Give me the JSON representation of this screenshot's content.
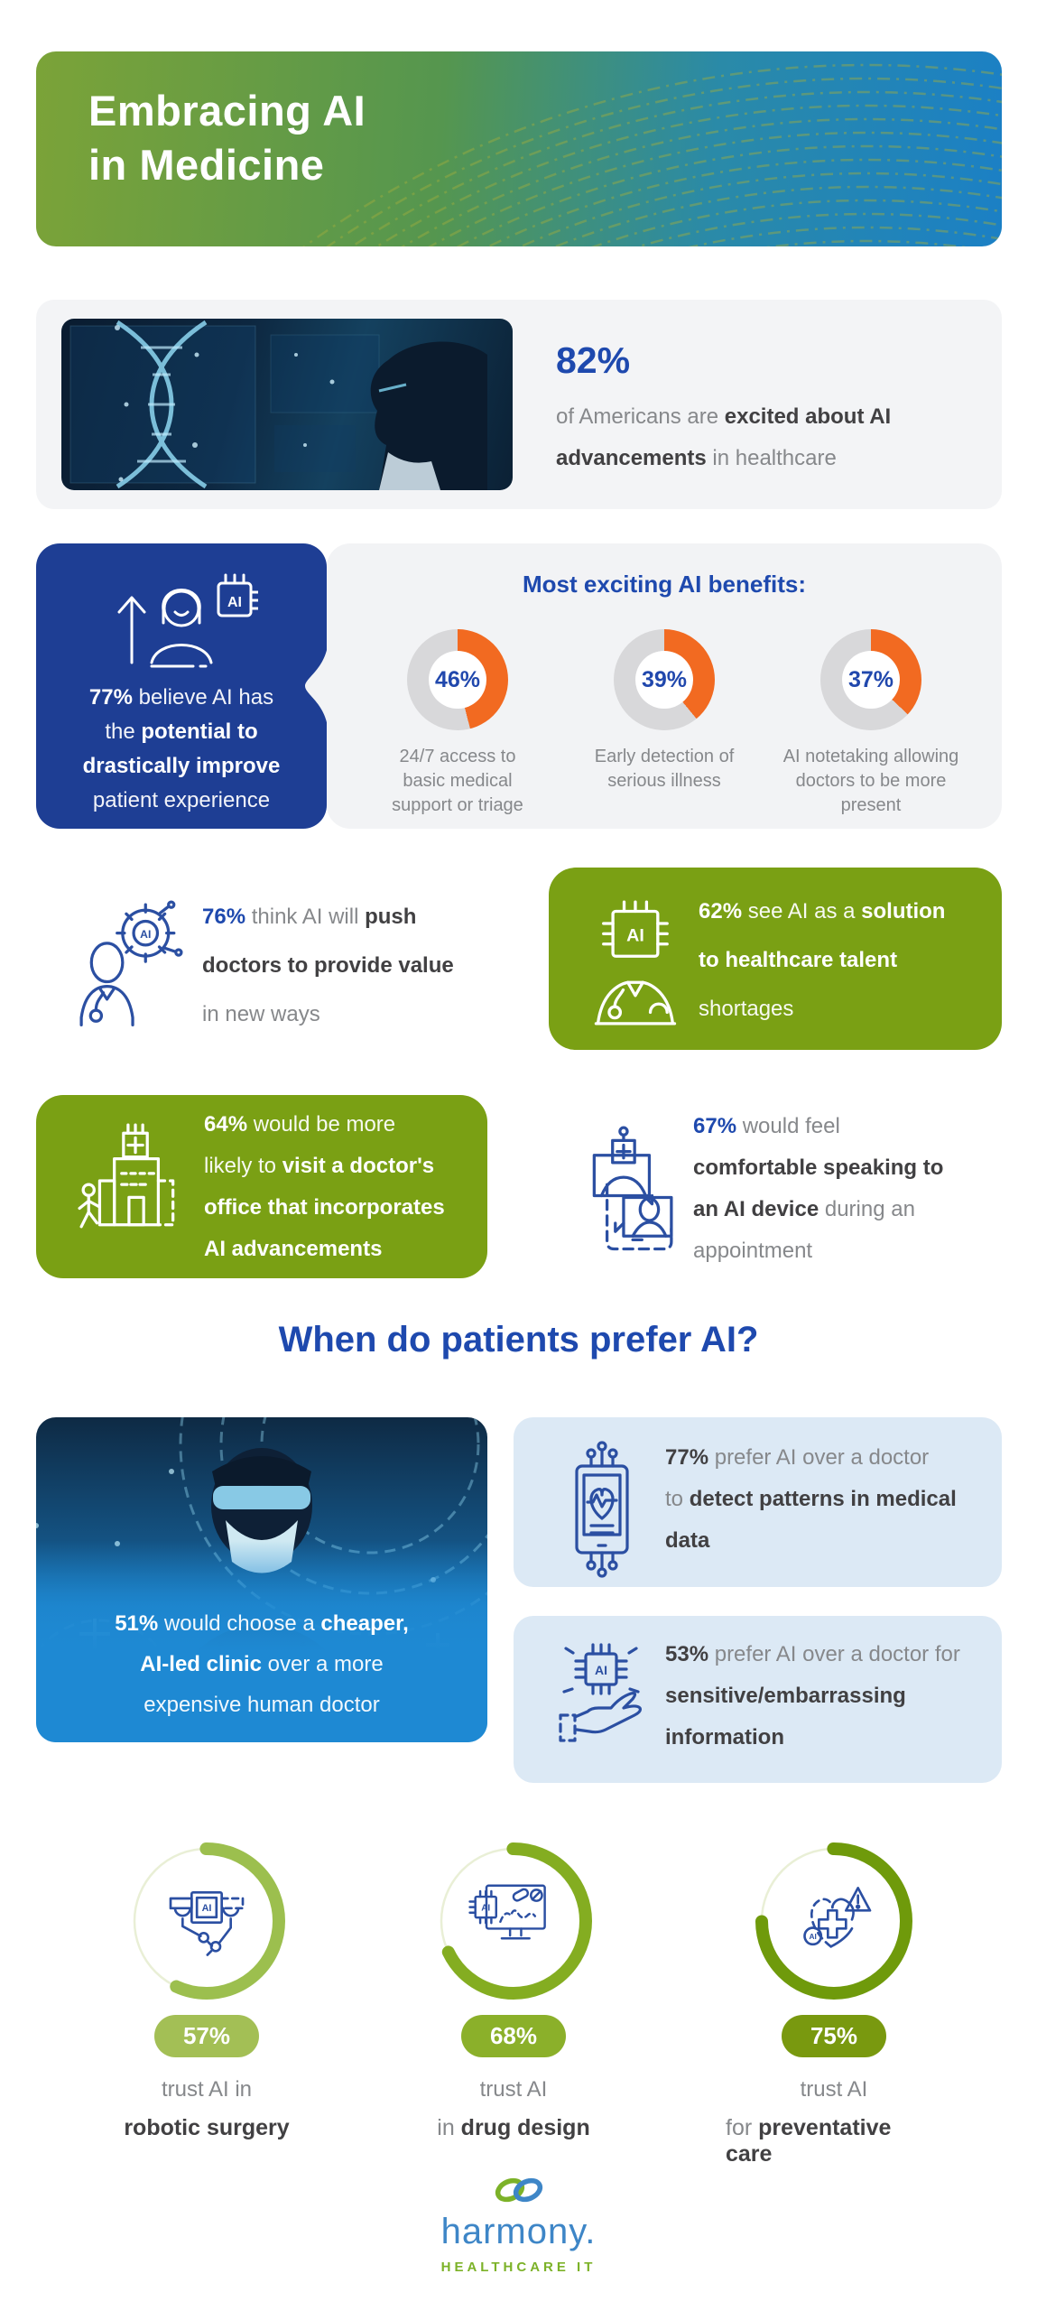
{
  "header": {
    "title_line1": "Embracing AI",
    "title_line2": "in Medicine"
  },
  "hero": {
    "stat": "82%",
    "segments": [
      {
        "t": "of Americans are ",
        "s": "n"
      },
      {
        "t": "excited about AI",
        "s": "b"
      },
      {
        "br": true
      },
      {
        "t": "advancements",
        "s": "b"
      },
      {
        "t": " in healthcare",
        "s": "n"
      }
    ]
  },
  "benefits": {
    "heading": "Most exciting AI benefits:",
    "left": {
      "icon": "growth-person-ai-icon",
      "segments": [
        {
          "t": "77%",
          "s": "wb"
        },
        {
          "t": " believe AI has",
          "s": "w"
        },
        {
          "br": true
        },
        {
          "t": "the ",
          "s": "w"
        },
        {
          "t": "potential to",
          "s": "wb"
        },
        {
          "br": true
        },
        {
          "t": "drastically improve",
          "s": "wb"
        },
        {
          "br": true
        },
        {
          "t": "patient experience",
          "s": "w"
        }
      ]
    },
    "donuts": [
      {
        "pct": "46%",
        "value": 46,
        "color": "#f26a21",
        "track": "#d8d8da",
        "label": "24/7 access to basic medical support or triage"
      },
      {
        "pct": "39%",
        "value": 39,
        "color": "#f26a21",
        "track": "#d8d8da",
        "label": "Early detection of serious illness"
      },
      {
        "pct": "37%",
        "value": 37,
        "color": "#f26a21",
        "track": "#d8d8da",
        "label": "AI notetaking allowing doctors to be more present"
      }
    ]
  },
  "stats": [
    {
      "icon": "doctor-gear-ai-icon",
      "segments": [
        {
          "t": "76%",
          "s": "nb"
        },
        {
          "t": " think AI will ",
          "s": "n"
        },
        {
          "t": "push",
          "s": "b"
        },
        {
          "br": true
        },
        {
          "t": "doctors to provide value",
          "s": "b"
        },
        {
          "br": true
        },
        {
          "t": "in new ways",
          "s": "n"
        }
      ]
    },
    {
      "icon": "ai-chip-person-icon",
      "segments": [
        {
          "t": "62%",
          "s": "wb"
        },
        {
          "t": " see AI as a ",
          "s": "w"
        },
        {
          "t": "solution",
          "s": "wb"
        },
        {
          "br": true
        },
        {
          "t": "to healthcare talent",
          "s": "wb"
        },
        {
          "br": true
        },
        {
          "t": "shortages",
          "s": "w"
        }
      ]
    },
    {
      "icon": "hospital-walk-icon",
      "segments": [
        {
          "t": "64%",
          "s": "wb"
        },
        {
          "t": " would be more",
          "s": "w"
        },
        {
          "br": true
        },
        {
          "t": "likely to ",
          "s": "w"
        },
        {
          "t": "visit a doctor's",
          "s": "wb"
        },
        {
          "br": true
        },
        {
          "t": "office that incorporates",
          "s": "wb"
        },
        {
          "br": true
        },
        {
          "t": "AI advancements",
          "s": "wb"
        }
      ]
    },
    {
      "icon": "video-visit-icon",
      "segments": [
        {
          "t": "67%",
          "s": "nb"
        },
        {
          "t": " would feel",
          "s": "n"
        },
        {
          "br": true
        },
        {
          "t": "comfortable speaking to",
          "s": "b"
        },
        {
          "br": true
        },
        {
          "t": "an AI device",
          "s": "b"
        },
        {
          "t": " during an",
          "s": "n"
        },
        {
          "br": true
        },
        {
          "t": "appointment",
          "s": "n"
        }
      ]
    }
  ],
  "prefer": {
    "heading": "When do patients prefer AI?",
    "photo_caption_segments": [
      {
        "t": "51%",
        "s": "wb"
      },
      {
        "t": " would choose a ",
        "s": "w"
      },
      {
        "t": "cheaper,",
        "s": "wb"
      },
      {
        "br": true
      },
      {
        "t": "AI-led clinic",
        "s": "wb"
      },
      {
        "t": " over a more",
        "s": "w"
      },
      {
        "br": true
      },
      {
        "t": "expensive human doctor",
        "s": "w"
      }
    ],
    "cards": [
      {
        "icon": "tablet-heart-monitor-icon",
        "segments": [
          {
            "t": "77%",
            "s": "b"
          },
          {
            "t": " prefer AI over a doctor",
            "s": "n"
          },
          {
            "br": true
          },
          {
            "t": "to ",
            "s": "n"
          },
          {
            "t": "detect patterns in medical",
            "s": "b"
          },
          {
            "br": true
          },
          {
            "t": "data",
            "s": "b"
          }
        ]
      },
      {
        "icon": "ai-chip-hand-icon",
        "segments": [
          {
            "t": "53%",
            "s": "b"
          },
          {
            "t": " prefer AI over a doctor for",
            "s": "n"
          },
          {
            "br": true
          },
          {
            "t": "sensitive/embarrassing",
            "s": "b"
          },
          {
            "br": true
          },
          {
            "t": "information",
            "s": "b"
          }
        ]
      }
    ]
  },
  "trust": {
    "track": "#e9efd6",
    "rings": [
      {
        "pct": "57%",
        "value": 57,
        "color": "#9cbf4e",
        "pill": "#a3bf55",
        "icon": "robotic-surgery-ai-icon",
        "line1": "trust AI in",
        "line2": [
          {
            "t": "robotic surgery",
            "s": "b"
          }
        ]
      },
      {
        "pct": "68%",
        "value": 68,
        "color": "#84ad21",
        "pill": "#8bb02a",
        "icon": "drug-design-ai-icon",
        "line1": "trust AI",
        "line2": [
          {
            "t": "in ",
            "s": "n"
          },
          {
            "t": "drug design",
            "s": "b"
          }
        ]
      },
      {
        "pct": "75%",
        "value": 75,
        "color": "#6f9a0b",
        "pill": "#79990f",
        "icon": "preventative-care-ai-icon",
        "line1": "trust AI",
        "line2": [
          {
            "t": "for ",
            "s": "n"
          },
          {
            "t": "preventative care",
            "s": "b"
          }
        ]
      }
    ]
  },
  "footer": {
    "logo_text": "harmony.",
    "logo_sub": "HEALTHCARE IT"
  },
  "colors": {
    "accent_blue": "#1e49ae",
    "dark_blue_box": "#1e3e94",
    "green_box": "#7aa014",
    "orange": "#f26a21",
    "donut_track": "#d8d8da",
    "light_blue_card": "#dce9f5",
    "panel_gray": "#f2f3f5",
    "photo_blue": "#1e89d3",
    "icon_blue": "#2b4fa2",
    "logo_blue": "#3e86c7",
    "logo_green": "#7cb228"
  },
  "icons": [
    "dotted-arcs-pattern",
    "dna-lab-photo",
    "growth-person-ai-icon",
    "doctor-gear-ai-icon",
    "ai-chip-person-icon",
    "hospital-walk-icon",
    "video-visit-icon",
    "ar-doctor-photo",
    "tablet-heart-monitor-icon",
    "ai-chip-hand-icon",
    "robotic-surgery-ai-icon",
    "drug-design-ai-icon",
    "preventative-care-ai-icon",
    "infinity-logo-icon"
  ],
  "chart_data": [
    {
      "type": "pie",
      "variant": "donut",
      "title": "Most exciting AI benefits",
      "categories": [
        "24/7 access to basic medical support or triage",
        "Early detection of serious illness",
        "AI notetaking allowing doctors to be more present"
      ],
      "values": [
        46,
        39,
        37
      ],
      "unit": "%",
      "colors": {
        "value": "#f26a21",
        "remainder": "#d8d8da"
      },
      "legend_position": "below-each"
    },
    {
      "type": "pie",
      "variant": "progress-ring",
      "title": "Trust in AI",
      "categories": [
        "robotic surgery",
        "drug design",
        "preventative care"
      ],
      "values": [
        57,
        68,
        75
      ],
      "unit": "%",
      "colors": [
        "#9cbf4e",
        "#84ad21",
        "#6f9a0b"
      ],
      "track_color": "#e9efd6"
    }
  ]
}
